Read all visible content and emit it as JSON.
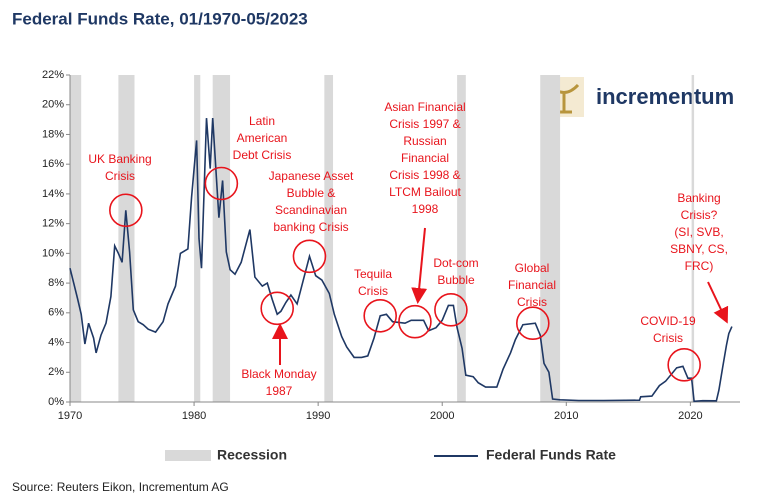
{
  "chart_data": {
    "type": "line",
    "title": "Federal Funds Rate, 01/1970-05/2023",
    "source": "Source: Reuters Eikon, Incrementum AG",
    "logo": "incrementum",
    "xlim": [
      1970,
      2024
    ],
    "xticks": [
      1970,
      1980,
      1990,
      2000,
      2010,
      2020
    ],
    "ylim": [
      0,
      22
    ],
    "yticks": [
      {
        "value": 0,
        "label": "0%"
      },
      {
        "value": 2,
        "label": "2%"
      },
      {
        "value": 4,
        "label": "4%"
      },
      {
        "value": 6,
        "label": "6%"
      },
      {
        "value": 8,
        "label": "8%"
      },
      {
        "value": 10,
        "label": "10%"
      },
      {
        "value": 12,
        "label": "12%"
      },
      {
        "value": 14,
        "label": "14%"
      },
      {
        "value": 16,
        "label": "16%"
      },
      {
        "value": 18,
        "label": "18%"
      },
      {
        "value": 20,
        "label": "20%"
      },
      {
        "value": 22,
        "label": "22%"
      }
    ],
    "recession_name": "Recession",
    "recession_color": "#d9d9d9",
    "recessions": [
      [
        1969.9,
        1970.9
      ],
      [
        1973.9,
        1975.2
      ],
      [
        1980.0,
        1980.5
      ],
      [
        1981.5,
        1982.9
      ],
      [
        1990.5,
        1991.2
      ],
      [
        2001.2,
        2001.9
      ],
      [
        2007.9,
        2009.5
      ],
      [
        2020.1,
        2020.3
      ]
    ],
    "x": [
      1970.0,
      1970.3,
      1970.6,
      1970.9,
      1971.2,
      1971.5,
      1971.9,
      1972.1,
      1972.5,
      1972.9,
      1973.3,
      1973.6,
      1973.9,
      1974.2,
      1974.5,
      1974.8,
      1975.1,
      1975.5,
      1975.9,
      1976.3,
      1976.9,
      1977.5,
      1977.9,
      1978.5,
      1978.9,
      1979.5,
      1979.8,
      1980.2,
      1980.4,
      1980.6,
      1980.8,
      1981.0,
      1981.3,
      1981.5,
      1981.8,
      1982.0,
      1982.3,
      1982.6,
      1982.9,
      1983.3,
      1983.8,
      1984.5,
      1984.9,
      1985.5,
      1985.9,
      1986.3,
      1986.7,
      1987.0,
      1987.4,
      1987.8,
      1988.3,
      1988.8,
      1989.3,
      1989.8,
      1990.3,
      1990.9,
      1991.3,
      1991.9,
      1992.3,
      1992.9,
      1993.5,
      1994.0,
      1994.5,
      1995.0,
      1995.5,
      1996.0,
      1997.0,
      1997.5,
      1998.5,
      1998.9,
      1999.5,
      2000.0,
      2000.5,
      2000.9,
      2001.2,
      2001.6,
      2001.9,
      2002.5,
      2002.9,
      2003.5,
      2004.4,
      2004.9,
      2005.5,
      2005.9,
      2006.5,
      2007.5,
      2007.9,
      2008.2,
      2008.6,
      2008.9,
      2009.5,
      2011.0,
      2013.0,
      2015.9,
      2016.0,
      2016.9,
      2017.5,
      2018.0,
      2018.9,
      2019.4,
      2019.8,
      2020.1,
      2020.3,
      2021.0,
      2022.1,
      2022.3,
      2022.6,
      2022.9,
      2023.1,
      2023.35
    ],
    "series": [
      {
        "name": "Federal Funds Rate",
        "color": "#1f3864",
        "values": [
          9.0,
          8.0,
          7.0,
          5.9,
          3.9,
          5.3,
          4.3,
          3.3,
          4.5,
          5.3,
          7.1,
          10.5,
          10.0,
          9.4,
          12.9,
          10.1,
          6.2,
          5.4,
          5.2,
          4.9,
          4.7,
          5.4,
          6.6,
          7.8,
          10.0,
          10.3,
          13.8,
          17.6,
          11.0,
          9.0,
          14.0,
          19.1,
          15.7,
          19.1,
          15.1,
          12.4,
          14.9,
          10.1,
          8.9,
          8.6,
          9.4,
          11.6,
          8.4,
          7.8,
          8.0,
          6.9,
          5.9,
          6.1,
          6.7,
          7.2,
          6.6,
          8.2,
          9.8,
          8.5,
          8.2,
          7.3,
          5.9,
          4.4,
          3.7,
          3.0,
          3.0,
          3.1,
          4.3,
          5.8,
          5.9,
          5.4,
          5.3,
          5.5,
          5.5,
          4.8,
          5.0,
          5.5,
          6.5,
          6.5,
          5.0,
          3.6,
          1.8,
          1.7,
          1.3,
          1.0,
          1.0,
          2.2,
          3.3,
          4.2,
          5.2,
          5.3,
          4.5,
          2.6,
          2.0,
          0.2,
          0.15,
          0.1,
          0.1,
          0.12,
          0.35,
          0.4,
          1.1,
          1.4,
          2.3,
          2.4,
          1.6,
          1.6,
          0.05,
          0.09,
          0.08,
          0.8,
          2.3,
          3.8,
          4.6,
          5.07
        ]
      }
    ],
    "annotation_color": "#e8141c",
    "annotations": [
      {
        "text": [
          "UK Banking",
          "Crisis"
        ],
        "x": 1974.5,
        "y": 12.9
      },
      {
        "text": [
          "Latin",
          "American",
          "Debt Crisis"
        ],
        "x": 1982.2,
        "y": 14.7
      },
      {
        "text": [
          "Japanese Asset",
          "Bubble &",
          "Scandinavian",
          "banking Crisis"
        ],
        "x": 1989.3,
        "y": 9.8
      },
      {
        "text": [
          "Black Monday",
          "1987"
        ],
        "x": 1986.7,
        "y": 6.3
      },
      {
        "text": [
          "Tequila",
          "Crisis"
        ],
        "x": 1995.0,
        "y": 5.8
      },
      {
        "text": [
          "Asian Financial",
          "Crisis 1997 &",
          "Russian",
          "Financial",
          "Crisis 1998 &",
          "LTCM Bailout",
          "1998"
        ],
        "x": 1997.8,
        "y": 5.4
      },
      {
        "text": [
          "Dot-com",
          "Bubble"
        ],
        "x": 2000.7,
        "y": 6.2
      },
      {
        "text": [
          "Global",
          "Financial",
          "Crisis"
        ],
        "x": 2007.3,
        "y": 5.3
      },
      {
        "text": [
          "COVID-19",
          "Crisis"
        ],
        "x": 2019.5,
        "y": 2.5
      },
      {
        "text": [
          "Banking",
          "Crisis?",
          "(SI, SVB,",
          "SBNY, CS,",
          "FRC)"
        ],
        "x": 2023.35,
        "y": 5.07
      }
    ]
  }
}
